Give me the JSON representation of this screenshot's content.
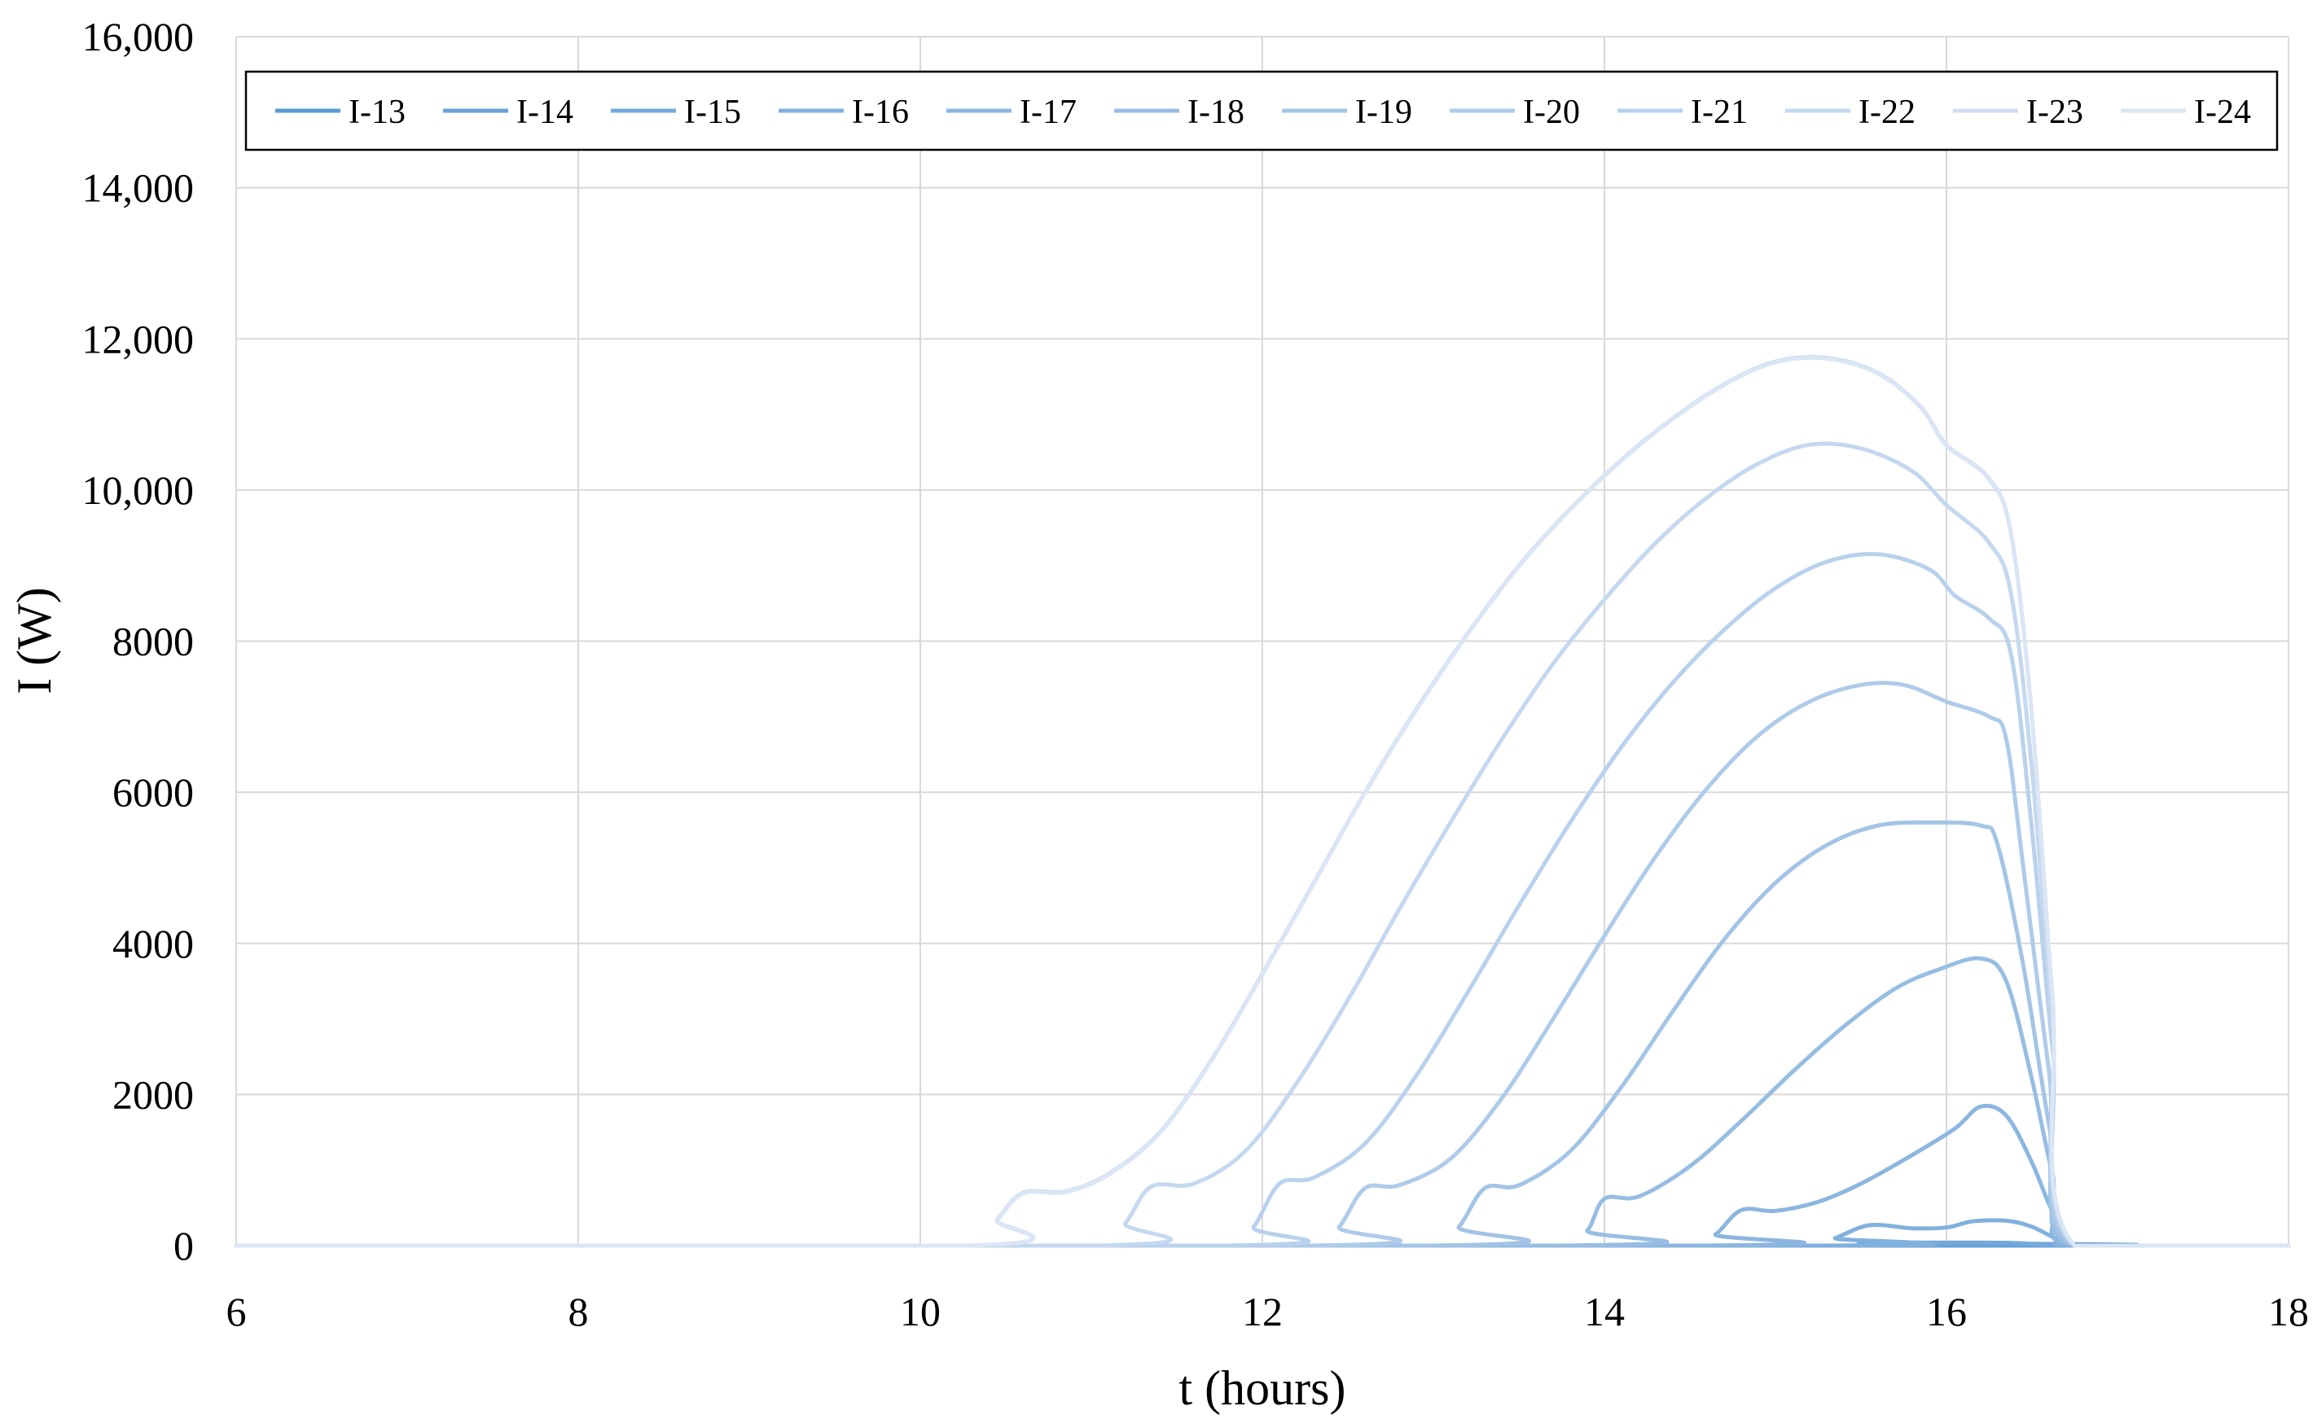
{
  "chart_data": {
    "type": "line",
    "title": "",
    "xlabel": "t (hours)",
    "ylabel": "I (W)",
    "xlim": [
      6,
      18
    ],
    "ylim": [
      0,
      16000
    ],
    "x_ticks": [
      "6",
      "8",
      "10",
      "12",
      "14",
      "16",
      "18"
    ],
    "y_ticks": [
      "0",
      "2000",
      "4000",
      "6000",
      "8000",
      "10,000",
      "12,000",
      "14,000",
      "16,000"
    ],
    "grid": true,
    "legend_position": "top",
    "series": [
      {
        "name": "I-13",
        "color": "#5b9bd5",
        "points": [
          [
            6,
            0
          ],
          [
            16.3,
            0
          ],
          [
            16.5,
            8
          ],
          [
            16.65,
            4
          ],
          [
            16.75,
            0
          ],
          [
            18,
            0
          ]
        ]
      },
      {
        "name": "I-14",
        "color": "#68a2d8",
        "points": [
          [
            6,
            0
          ],
          [
            16.3,
            0
          ],
          [
            16.5,
            25
          ],
          [
            16.65,
            12
          ],
          [
            16.75,
            0
          ],
          [
            18,
            0
          ]
        ]
      },
      {
        "name": "I-15",
        "color": "#74a9db",
        "points": [
          [
            6,
            0
          ],
          [
            15.2,
            0
          ],
          [
            15.5,
            35
          ],
          [
            16.2,
            40
          ],
          [
            16.45,
            30
          ],
          [
            16.75,
            0
          ],
          [
            18,
            0
          ]
        ]
      },
      {
        "name": "I-16",
        "color": "#80b0de",
        "points": [
          [
            6,
            0
          ],
          [
            15.2,
            0
          ],
          [
            15.35,
            100
          ],
          [
            15.55,
            270
          ],
          [
            15.8,
            230
          ],
          [
            16.0,
            240
          ],
          [
            16.15,
            320
          ],
          [
            16.35,
            330
          ],
          [
            16.5,
            250
          ],
          [
            16.65,
            80
          ],
          [
            16.75,
            0
          ],
          [
            18,
            0
          ]
        ]
      },
      {
        "name": "I-17",
        "color": "#8cb6e0",
        "points": [
          [
            6,
            0
          ],
          [
            14.5,
            0
          ],
          [
            14.65,
            150
          ],
          [
            14.8,
            470
          ],
          [
            15.0,
            460
          ],
          [
            15.25,
            580
          ],
          [
            15.5,
            820
          ],
          [
            15.8,
            1200
          ],
          [
            16.05,
            1550
          ],
          [
            16.2,
            1840
          ],
          [
            16.35,
            1720
          ],
          [
            16.5,
            1100
          ],
          [
            16.62,
            450
          ],
          [
            16.75,
            0
          ],
          [
            18,
            0
          ]
        ]
      },
      {
        "name": "I-18",
        "color": "#97bde3",
        "points": [
          [
            6,
            0
          ],
          [
            13.75,
            0
          ],
          [
            13.9,
            200
          ],
          [
            14.0,
            620
          ],
          [
            14.2,
            650
          ],
          [
            14.5,
            1050
          ],
          [
            14.8,
            1650
          ],
          [
            15.1,
            2300
          ],
          [
            15.4,
            2900
          ],
          [
            15.7,
            3400
          ],
          [
            15.95,
            3650
          ],
          [
            16.2,
            3800
          ],
          [
            16.35,
            3500
          ],
          [
            16.5,
            2200
          ],
          [
            16.62,
            950
          ],
          [
            16.75,
            0
          ],
          [
            18,
            0
          ]
        ]
      },
      {
        "name": "I-19",
        "color": "#a3c4e6",
        "points": [
          [
            6,
            0
          ],
          [
            13.0,
            0
          ],
          [
            13.15,
            250
          ],
          [
            13.3,
            760
          ],
          [
            13.5,
            800
          ],
          [
            13.8,
            1250
          ],
          [
            14.1,
            2100
          ],
          [
            14.4,
            3100
          ],
          [
            14.7,
            4050
          ],
          [
            15.0,
            4800
          ],
          [
            15.3,
            5300
          ],
          [
            15.6,
            5560
          ],
          [
            15.9,
            5600
          ],
          [
            16.2,
            5560
          ],
          [
            16.3,
            5300
          ],
          [
            16.45,
            3700
          ],
          [
            16.6,
            1600
          ],
          [
            16.75,
            0
          ],
          [
            18,
            0
          ]
        ]
      },
      {
        "name": "I-20",
        "color": "#aecbe9",
        "points": [
          [
            6,
            0
          ],
          [
            12.3,
            0
          ],
          [
            12.45,
            250
          ],
          [
            12.6,
            760
          ],
          [
            12.8,
            800
          ],
          [
            13.1,
            1150
          ],
          [
            13.4,
            1950
          ],
          [
            13.7,
            3000
          ],
          [
            14.0,
            4100
          ],
          [
            14.3,
            5150
          ],
          [
            14.6,
            6050
          ],
          [
            14.9,
            6750
          ],
          [
            15.2,
            7200
          ],
          [
            15.5,
            7420
          ],
          [
            15.75,
            7420
          ],
          [
            16.0,
            7200
          ],
          [
            16.25,
            7000
          ],
          [
            16.35,
            6700
          ],
          [
            16.45,
            5000
          ],
          [
            16.6,
            2300
          ],
          [
            16.75,
            0
          ],
          [
            18,
            0
          ]
        ]
      },
      {
        "name": "I-21",
        "color": "#b9d1ec",
        "points": [
          [
            6,
            0
          ],
          [
            11.8,
            0
          ],
          [
            11.95,
            250
          ],
          [
            12.1,
            820
          ],
          [
            12.3,
            900
          ],
          [
            12.6,
            1350
          ],
          [
            12.9,
            2250
          ],
          [
            13.2,
            3350
          ],
          [
            13.5,
            4500
          ],
          [
            13.8,
            5600
          ],
          [
            14.1,
            6600
          ],
          [
            14.4,
            7450
          ],
          [
            14.7,
            8150
          ],
          [
            15.0,
            8700
          ],
          [
            15.3,
            9050
          ],
          [
            15.6,
            9150
          ],
          [
            15.9,
            8950
          ],
          [
            16.05,
            8600
          ],
          [
            16.25,
            8300
          ],
          [
            16.38,
            7800
          ],
          [
            16.5,
            5500
          ],
          [
            16.62,
            2600
          ],
          [
            16.75,
            0
          ],
          [
            18,
            0
          ]
        ]
      },
      {
        "name": "I-22",
        "color": "#c4d8ef",
        "points": [
          [
            6,
            0
          ],
          [
            11.05,
            0
          ],
          [
            11.2,
            300
          ],
          [
            11.35,
            780
          ],
          [
            11.6,
            820
          ],
          [
            11.9,
            1250
          ],
          [
            12.2,
            2150
          ],
          [
            12.5,
            3250
          ],
          [
            12.8,
            4450
          ],
          [
            13.1,
            5600
          ],
          [
            13.4,
            6700
          ],
          [
            13.7,
            7700
          ],
          [
            14.0,
            8550
          ],
          [
            14.3,
            9300
          ],
          [
            14.6,
            9900
          ],
          [
            14.9,
            10350
          ],
          [
            15.2,
            10600
          ],
          [
            15.5,
            10550
          ],
          [
            15.8,
            10250
          ],
          [
            16.0,
            9800
          ],
          [
            16.25,
            9300
          ],
          [
            16.38,
            8600
          ],
          [
            16.5,
            6300
          ],
          [
            16.62,
            3000
          ],
          [
            16.75,
            0
          ],
          [
            18,
            0
          ]
        ]
      },
      {
        "name": "I-23",
        "color": "#cfdef2",
        "points": [
          [
            6,
            0
          ],
          [
            10.3,
            0
          ],
          [
            10.45,
            350
          ],
          [
            10.6,
            700
          ],
          [
            10.85,
            720
          ],
          [
            11.1,
            950
          ],
          [
            11.4,
            1500
          ],
          [
            11.7,
            2450
          ],
          [
            12.0,
            3600
          ],
          [
            12.3,
            4800
          ],
          [
            12.6,
            6000
          ],
          [
            12.9,
            7100
          ],
          [
            13.2,
            8100
          ],
          [
            13.5,
            9000
          ],
          [
            13.8,
            9750
          ],
          [
            14.1,
            10400
          ],
          [
            14.4,
            10950
          ],
          [
            14.7,
            11400
          ],
          [
            15.0,
            11700
          ],
          [
            15.3,
            11750
          ],
          [
            15.6,
            11550
          ],
          [
            15.85,
            11100
          ],
          [
            16.0,
            10600
          ],
          [
            16.25,
            10150
          ],
          [
            16.38,
            9400
          ],
          [
            16.5,
            7000
          ],
          [
            16.62,
            3300
          ],
          [
            16.75,
            0
          ],
          [
            18,
            0
          ]
        ]
      },
      {
        "name": "I-24",
        "color": "#dae5f5",
        "points": [
          [
            6,
            0
          ],
          [
            10.3,
            0
          ],
          [
            10.45,
            340
          ],
          [
            10.6,
            690
          ],
          [
            10.85,
            710
          ],
          [
            11.1,
            940
          ],
          [
            11.4,
            1490
          ],
          [
            11.7,
            2440
          ],
          [
            12.0,
            3590
          ],
          [
            12.3,
            4790
          ],
          [
            12.6,
            5990
          ],
          [
            12.9,
            7090
          ],
          [
            13.2,
            8090
          ],
          [
            13.5,
            8990
          ],
          [
            13.8,
            9740
          ],
          [
            14.1,
            10390
          ],
          [
            14.4,
            10940
          ],
          [
            14.7,
            11390
          ],
          [
            15.0,
            11690
          ],
          [
            15.3,
            11740
          ],
          [
            15.6,
            11540
          ],
          [
            15.85,
            11090
          ],
          [
            16.0,
            10590
          ],
          [
            16.25,
            10140
          ],
          [
            16.38,
            9390
          ],
          [
            16.5,
            6990
          ],
          [
            16.62,
            3290
          ],
          [
            16.75,
            0
          ],
          [
            18,
            0
          ]
        ]
      }
    ]
  }
}
